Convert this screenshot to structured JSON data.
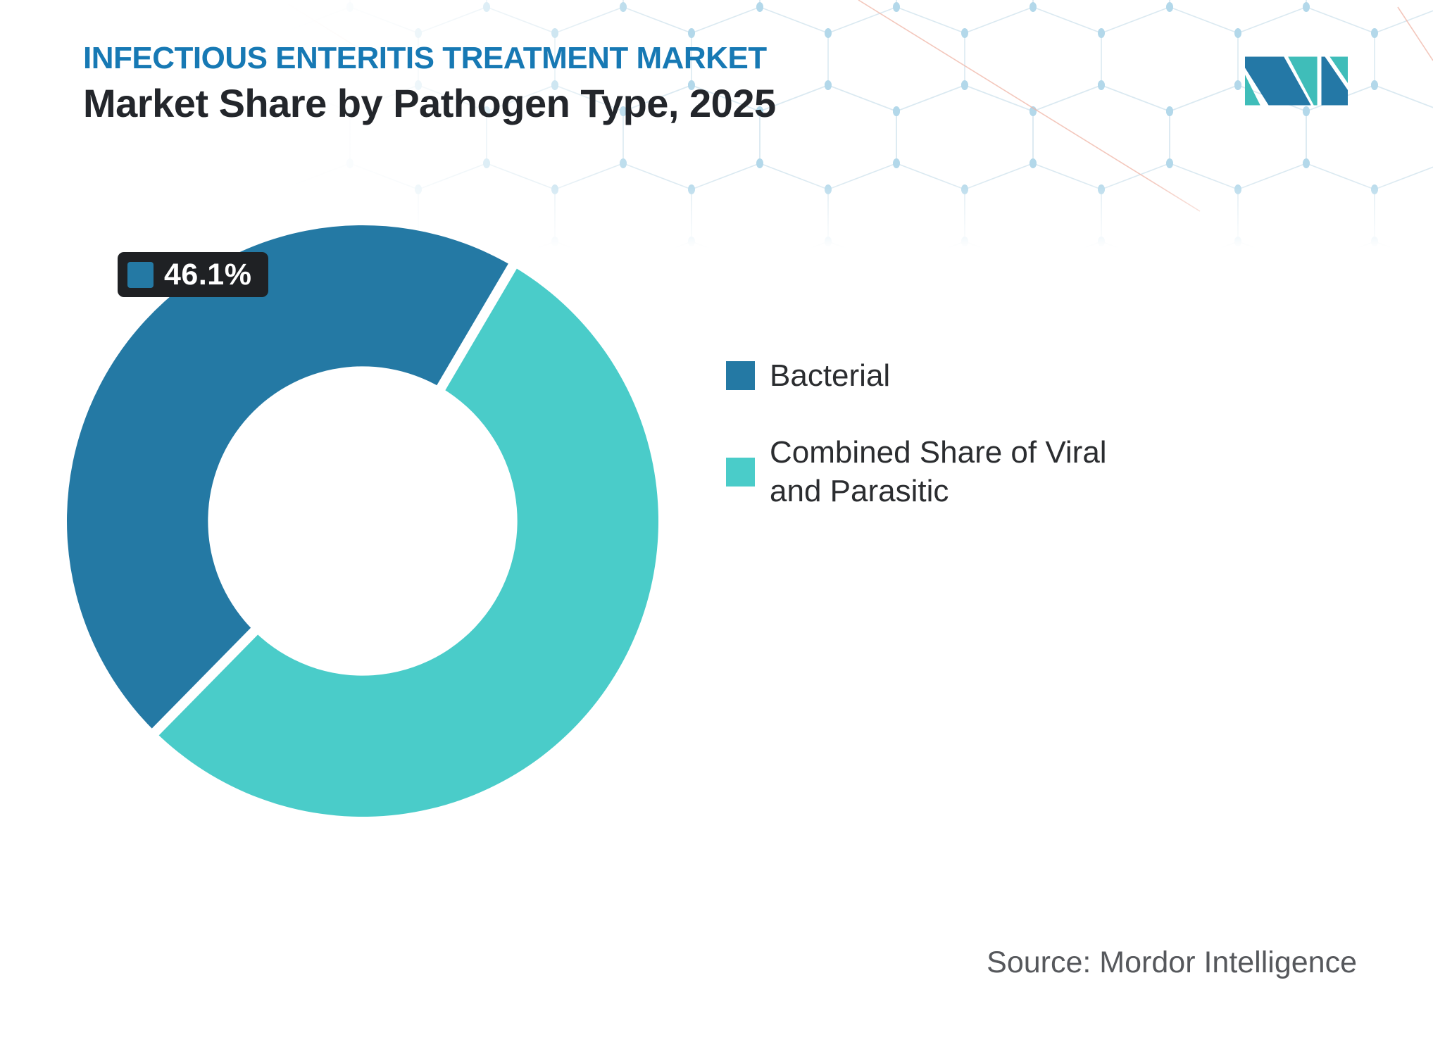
{
  "header": {
    "eyebrow": "INFECTIOUS ENTERITIS TREATMENT MARKET",
    "title": "Market Share by Pathogen Type, 2025"
  },
  "colors": {
    "eyebrow_blue": "#1779B4",
    "accent_blue": "#2479A4",
    "accent_teal": "#4ACCC9",
    "label_box_bg": "#1F2124",
    "logo_blue": "#2478A6",
    "logo_teal": "#3FBDB9",
    "pattern_line": "#DAE9F1",
    "pattern_dot": "#B3D8EA",
    "pattern_accent": "#F0B5A6"
  },
  "chart_data": {
    "type": "pie",
    "donut": true,
    "title": "Market Share by Pathogen Type, 2025",
    "inner_radius_ratio": 0.523,
    "start_angle_clock_deg": 224.5,
    "categories": [
      "Bacterial",
      "Combined Share of Viral and Parasitic"
    ],
    "values": [
      46.1,
      53.9
    ],
    "series": [
      {
        "name": "Bacterial",
        "value": 46.1,
        "color": "#2479A4"
      },
      {
        "name": "Combined Share of Viral and Parasitic",
        "value": 53.9,
        "color": "#4ACCC9"
      }
    ],
    "data_label": {
      "text": "46.1%",
      "series": "Bacterial"
    },
    "legend_position": "right"
  },
  "legend": {
    "items": [
      {
        "label": "Bacterial",
        "color": "#2479A4"
      },
      {
        "label": "Combined Share of Viral and Parasitic",
        "color": "#4ACCC9"
      }
    ]
  },
  "source": {
    "text": "Source: Mordor Intelligence"
  },
  "icons": {
    "logo": "mordor-intelligence-logo"
  }
}
